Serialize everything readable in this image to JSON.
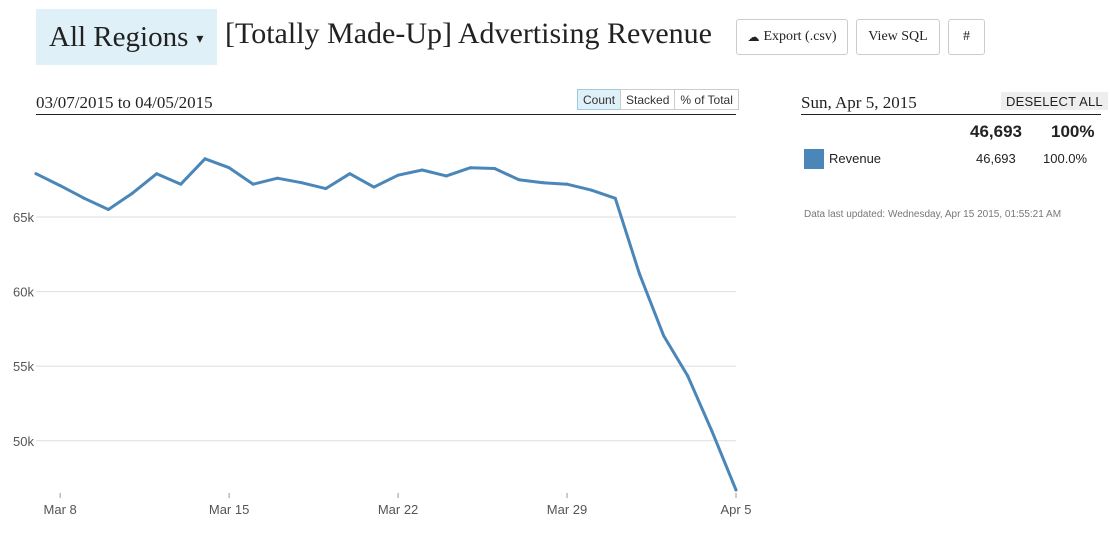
{
  "header": {
    "region_label": "All Regions",
    "title": "[Totally Made-Up] Advertising Revenue",
    "export_label": "Export (.csv)",
    "view_sql_label": "View SQL",
    "hash_label": "#"
  },
  "chart_panel": {
    "date_range": "03/07/2015 to 04/05/2015",
    "modes": [
      "Count",
      "Stacked",
      "% of Total"
    ],
    "active_mode": "Count"
  },
  "colors": {
    "accent": "#4a87b8",
    "active_bg": "#dff0f8",
    "grid": "#dddddd"
  },
  "chart_data": {
    "type": "line",
    "title": "[Totally Made-Up] Advertising Revenue",
    "xlabel": "",
    "ylabel": "",
    "x": [
      "Mar 7",
      "Mar 8",
      "Mar 9",
      "Mar 10",
      "Mar 11",
      "Mar 12",
      "Mar 13",
      "Mar 14",
      "Mar 15",
      "Mar 16",
      "Mar 17",
      "Mar 18",
      "Mar 19",
      "Mar 20",
      "Mar 21",
      "Mar 22",
      "Mar 23",
      "Mar 24",
      "Mar 25",
      "Mar 26",
      "Mar 27",
      "Mar 28",
      "Mar 29",
      "Mar 30",
      "Mar 31",
      "Apr 1",
      "Apr 2",
      "Apr 3",
      "Apr 4",
      "Apr 5"
    ],
    "x_ticks": [
      "Mar 8",
      "Mar 15",
      "Mar 22",
      "Mar 29",
      "Apr 5"
    ],
    "y_ticks": [
      50000,
      55000,
      60000,
      65000
    ],
    "y_tick_labels": [
      "50k",
      "55k",
      "60k",
      "65k"
    ],
    "ylim": [
      46500,
      71500
    ],
    "grid": true,
    "series": [
      {
        "name": "Revenue",
        "color": "#4a87b8",
        "values": [
          67900,
          67100,
          66250,
          65500,
          66600,
          67900,
          67200,
          68900,
          68300,
          67200,
          67600,
          67300,
          66900,
          67900,
          67000,
          67800,
          68150,
          67750,
          68300,
          68250,
          67500,
          67300,
          67200,
          66800,
          66250,
          61200,
          57050,
          54350,
          50650,
          46700
        ]
      }
    ]
  },
  "selection": {
    "date": "Sun, Apr 5, 2015",
    "deselect_label": "DESELECT ALL",
    "total_count": "46,693",
    "total_percent": "100%",
    "items": [
      {
        "name": "Revenue",
        "count": "46,693",
        "percent": "100.0%",
        "color": "#4a87b8"
      }
    ]
  },
  "footer": {
    "last_updated": "Data last updated: Wednesday, Apr 15 2015, 01:55:21 AM"
  }
}
